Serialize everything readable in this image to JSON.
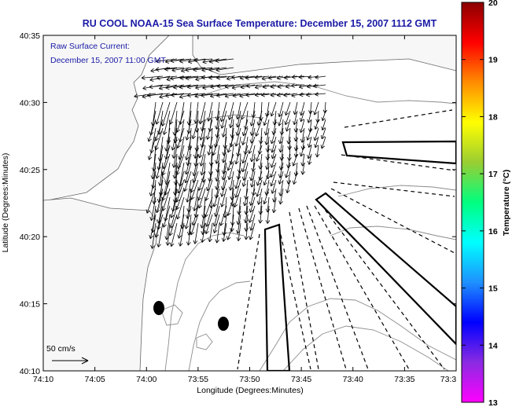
{
  "title": "RU COOL  NOAA-15  Sea Surface Temperature:  December 15, 2007 1112 GMT",
  "annotation": {
    "line1": "Raw Surface Current:",
    "line2": "December 15, 2007 11:00 GMT"
  },
  "scale_label": "50 cm/s",
  "x_axis": {
    "label": "Longitude (Degrees:Minutes)",
    "ticks": [
      "74:10",
      "74:05",
      "74:00",
      "73:55",
      "73:50",
      "73:45",
      "73:40",
      "73:35",
      "73:3"
    ]
  },
  "y_axis": {
    "label": "Latitude (Degrees:Minutes)",
    "ticks": [
      "40:35",
      "40:30",
      "40:25",
      "40:20",
      "40:15",
      "40:10"
    ]
  },
  "colorbar": {
    "label": "Temperature (°C)",
    "ticks": [
      "20",
      "19",
      "18",
      "17",
      "16",
      "15",
      "14",
      "13"
    ],
    "colors": [
      "#8b0000",
      "#ff0000",
      "#ff8c00",
      "#ffff00",
      "#9acd32",
      "#00ff7f",
      "#00ffff",
      "#1e90ff",
      "#0000ff",
      "#8a2be2",
      "#ff00ff"
    ]
  },
  "colors": {
    "title": "#1a1aa6",
    "land": "#f7f7f7",
    "contour": "#8c8c8c"
  }
}
